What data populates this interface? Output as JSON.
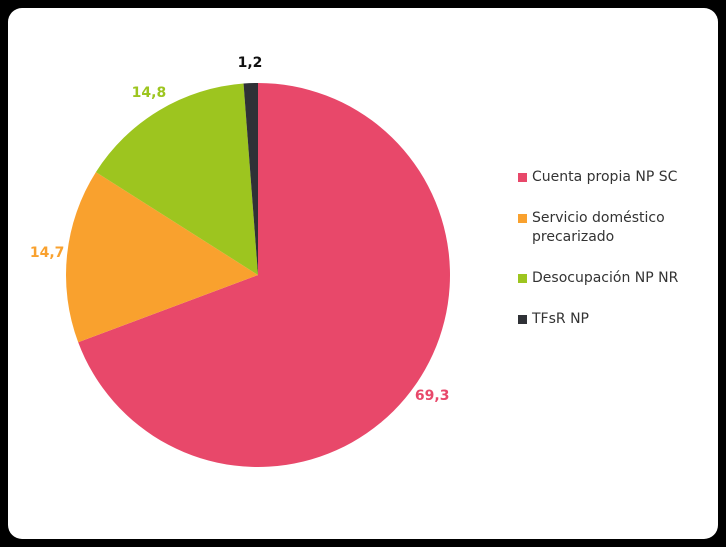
{
  "chart_data": {
    "type": "pie",
    "categories": [
      "Cuenta propia NP SC",
      "Servicio doméstico precarizado",
      "Desocupación NP NR",
      "TFsR NP"
    ],
    "values": [
      69.3,
      14.7,
      14.8,
      1.2
    ],
    "value_labels": [
      "69,3",
      "14,7",
      "14,8",
      "1,2"
    ],
    "colors": [
      "#e8486a",
      "#f9a12e",
      "#9dc51f",
      "#2f3136"
    ],
    "legend": "right"
  }
}
